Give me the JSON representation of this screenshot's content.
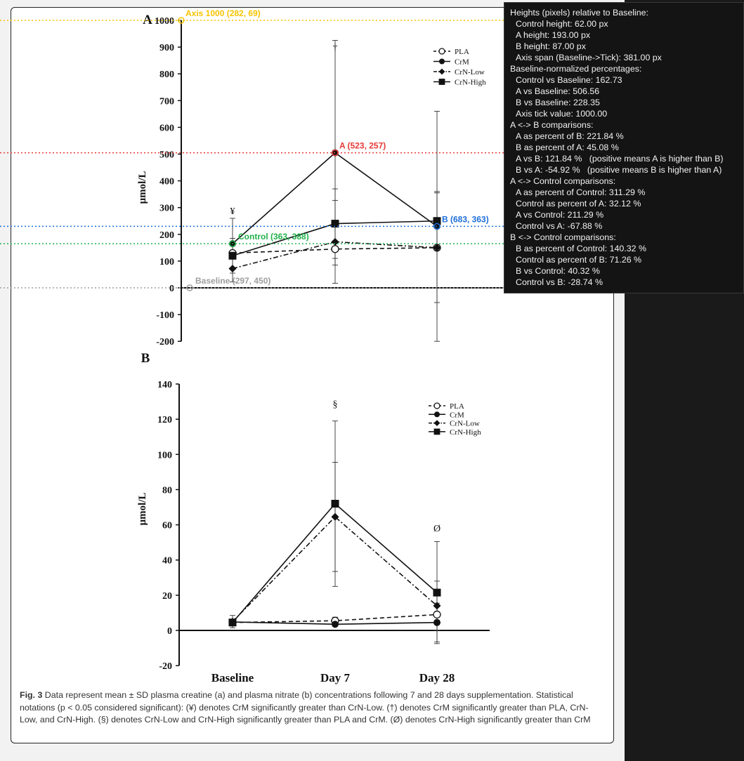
{
  "chart_data": [
    {
      "type": "line",
      "panel_label": "A",
      "ylabel": "μmol/L",
      "categories": [
        "Baseline",
        "Day 7",
        "Day 28"
      ],
      "ylim": [
        -200,
        1000
      ],
      "yticks": [
        -200,
        -100,
        0,
        100,
        200,
        300,
        400,
        500,
        600,
        700,
        800,
        900,
        1000
      ],
      "legend_position": "top-right",
      "series": [
        {
          "name": "PLA",
          "style": "dashed",
          "marker": "open-circle",
          "values": [
            130,
            145,
            150
          ],
          "sd": [
            0,
            0,
            0
          ]
        },
        {
          "name": "CrM",
          "style": "solid",
          "marker": "filled-circle",
          "values": [
            165,
            505,
            230
          ],
          "sd": [
            95,
            420,
            430
          ]
        },
        {
          "name": "CrN-Low",
          "style": "dash-dot",
          "marker": "diamond",
          "values": [
            72,
            172,
            150
          ],
          "sd": [
            50,
            155,
            205
          ]
        },
        {
          "name": "CrN-High",
          "style": "solid",
          "marker": "square",
          "values": [
            120,
            240,
            250
          ],
          "sd": [
            65,
            130,
            110
          ]
        }
      ],
      "annotations": [
        {
          "category": "Baseline",
          "text": "¥"
        },
        {
          "category": "Day 7",
          "text": "†"
        }
      ]
    },
    {
      "type": "line",
      "panel_label": "B",
      "ylabel": "μmol/L",
      "categories": [
        "Baseline",
        "Day 7",
        "Day 28"
      ],
      "ylim": [
        -20,
        140
      ],
      "yticks": [
        -20,
        0,
        20,
        40,
        60,
        80,
        100,
        120,
        140
      ],
      "legend_position": "top-right",
      "series": [
        {
          "name": "PLA",
          "style": "dashed",
          "marker": "open-circle",
          "values": [
            4.5,
            5.5,
            9
          ],
          "sd": [
            0,
            2,
            0
          ]
        },
        {
          "name": "CrM",
          "style": "solid",
          "marker": "filled-circle",
          "values": [
            4.8,
            3.5,
            4.5
          ],
          "sd": [
            0,
            0,
            11
          ]
        },
        {
          "name": "CrN-Low",
          "style": "dash-dot",
          "marker": "diamond",
          "values": [
            5,
            64.5,
            14
          ],
          "sd": [
            3.5,
            31,
            14
          ]
        },
        {
          "name": "CrN-High",
          "style": "solid",
          "marker": "square",
          "values": [
            4.5,
            72,
            21.5
          ],
          "sd": [
            0,
            47,
            29
          ]
        }
      ],
      "annotations": [
        {
          "category": "Day 7",
          "text": "§"
        },
        {
          "category": "Day 28",
          "text": "Ø"
        }
      ]
    }
  ],
  "guides": [
    {
      "label": "Axis 1000 (282, 69)",
      "color": "#f5c400",
      "value": 1000
    },
    {
      "label": "A (523, 257)",
      "color": "#e53935",
      "value": 505
    },
    {
      "label": "B (683, 363)",
      "color": "#1e6fd9",
      "value": 230
    },
    {
      "label": "Control (363, 388)",
      "color": "#22b14c",
      "value": 165
    },
    {
      "label": "Baseline (297, 450)",
      "color": "#9e9e9e",
      "value": 0
    }
  ],
  "caption": {
    "label": "Fig. 3",
    "text": " Data represent mean ± SD plasma creatine (a) and plasma nitrate (b) concentrations following 7 and 28 days supplementation. Statistical notations (p < 0.05 considered significant): (¥) denotes CrM significantly greater than CrN-Low. (†) denotes CrM significantly greater than PLA, CrN-Low, and CrN-High. (§) denotes CrN-Low and CrN-High significantly greater than PLA and CrM. (Ø) denotes CrN-High significantly greater than CrM"
  },
  "overlay": {
    "lines": [
      {
        "text": "Heights (pixels) relative to Baseline:",
        "indent": false
      },
      {
        "text": "Control height: 62.00 px",
        "indent": true
      },
      {
        "text": "A height: 193.00 px",
        "indent": true
      },
      {
        "text": "B height: 87.00 px",
        "indent": true
      },
      {
        "text": "Axis span (Baseline->Tick): 381.00 px",
        "indent": true
      },
      {
        "text": "Baseline-normalized percentages:",
        "indent": false
      },
      {
        "text": "Control vs Baseline: 162.73",
        "indent": true
      },
      {
        "text": "A vs Baseline: 506.56",
        "indent": true
      },
      {
        "text": "B vs Baseline: 228.35",
        "indent": true
      },
      {
        "text": "Axis tick value: 1000.00",
        "indent": true
      },
      {
        "text": "A <-> B comparisons:",
        "indent": false
      },
      {
        "text": "A as percent of B: 221.84 %",
        "indent": true
      },
      {
        "text": "B as percent of A: 45.08 %",
        "indent": true
      },
      {
        "text": "A vs B: 121.84 %   (positive means A is higher than B)",
        "indent": true
      },
      {
        "text": "B vs A: -54.92 %   (positive means B is higher than A)",
        "indent": true
      },
      {
        "text": "A <-> Control comparisons:",
        "indent": false
      },
      {
        "text": "A as percent of Control: 311.29 %",
        "indent": true
      },
      {
        "text": "Control as percent of A: 32.12 %",
        "indent": true
      },
      {
        "text": "A vs Control: 211.29 %",
        "indent": true
      },
      {
        "text": "Control vs A: -67.88 %",
        "indent": true
      },
      {
        "text": "B <-> Control comparisons:",
        "indent": false
      },
      {
        "text": "B as percent of Control: 140.32 %",
        "indent": true
      },
      {
        "text": "Control as percent of B: 71.26 %",
        "indent": true
      },
      {
        "text": "B vs Control: 40.32 %",
        "indent": true
      },
      {
        "text": "Control vs B: -28.74 %",
        "indent": true
      }
    ]
  }
}
